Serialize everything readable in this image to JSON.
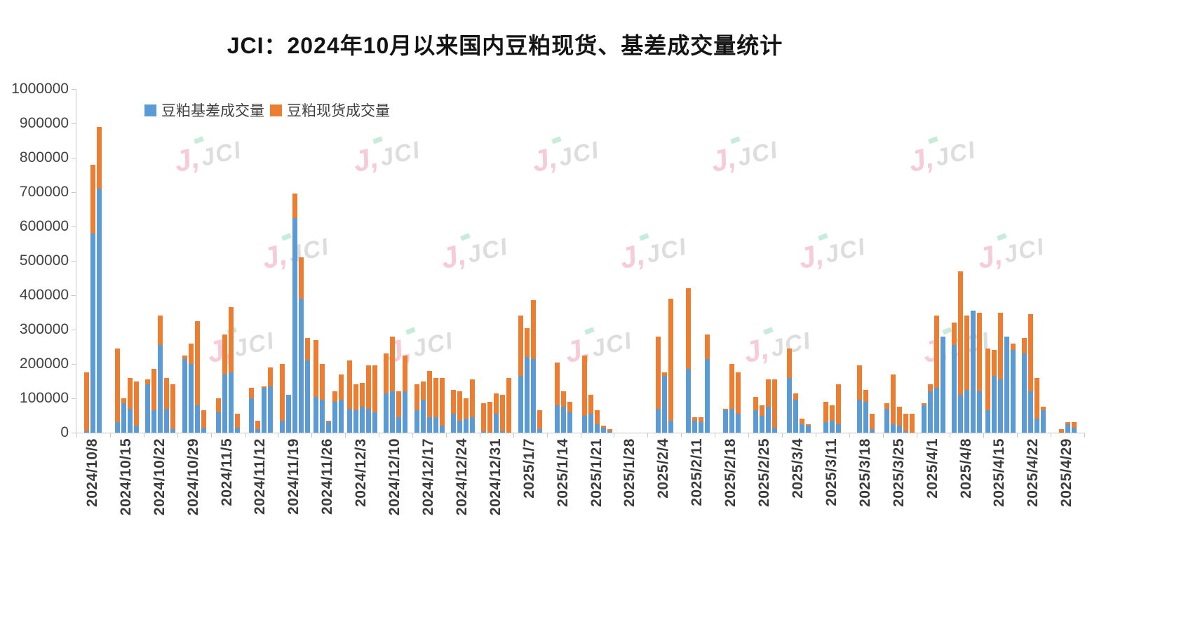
{
  "chart_data": {
    "type": "bar",
    "stacked": true,
    "title": "JCI：2024年10月以来国内豆粕现货、基差成交量统计",
    "xlabel": "",
    "ylabel": "",
    "ylim": [
      0,
      1000000
    ],
    "ytick_step": 100000,
    "yticks": [
      0,
      100000,
      200000,
      300000,
      400000,
      500000,
      600000,
      700000,
      800000,
      900000,
      1000000
    ],
    "grid": false,
    "legend_position": "top-left",
    "series": [
      {
        "name": "豆粕基差成交量",
        "color": "#5B9BD5"
      },
      {
        "name": "豆粕现货成交量",
        "color": "#ED7D31"
      }
    ],
    "bar_value_order": [
      "basis_volume",
      "spot_volume"
    ],
    "weeks": [
      {
        "label": "2024/10/8",
        "bars": [
          [
            5000,
            170000
          ],
          [
            580000,
            200000
          ],
          [
            710000,
            180000
          ]
        ]
      },
      {
        "label": "2024/10/15",
        "bars": [
          [
            30000,
            215000
          ],
          [
            85000,
            15000
          ],
          [
            70000,
            90000
          ],
          [
            20000,
            130000
          ]
        ]
      },
      {
        "label": "2024/10/22",
        "bars": [
          [
            140000,
            15000
          ],
          [
            65000,
            120000
          ],
          [
            255000,
            85000
          ],
          [
            70000,
            90000
          ],
          [
            10000,
            130000
          ]
        ]
      },
      {
        "label": "2024/10/29",
        "bars": [
          [
            215000,
            10000
          ],
          [
            200000,
            60000
          ],
          [
            80000,
            245000
          ],
          [
            15000,
            50000
          ]
        ]
      },
      {
        "label": "2024/11/5",
        "bars": [
          [
            60000,
            40000
          ],
          [
            170000,
            115000
          ],
          [
            175000,
            190000
          ],
          [
            15000,
            40000
          ]
        ]
      },
      {
        "label": "2024/11/12",
        "bars": [
          [
            100000,
            30000
          ],
          [
            10000,
            25000
          ],
          [
            130000,
            5000
          ],
          [
            135000,
            55000
          ]
        ]
      },
      {
        "label": "2024/11/19",
        "bars": [
          [
            35000,
            165000
          ],
          [
            110000,
            0
          ],
          [
            625000,
            70000
          ],
          [
            390000,
            120000
          ],
          [
            210000,
            65000
          ]
        ]
      },
      {
        "label": "2024/11/26",
        "bars": [
          [
            105000,
            165000
          ],
          [
            95000,
            105000
          ],
          [
            30000,
            5000
          ],
          [
            90000,
            30000
          ],
          [
            95000,
            75000
          ]
        ]
      },
      {
        "label": "2024/12/3",
        "bars": [
          [
            70000,
            140000
          ],
          [
            65000,
            75000
          ],
          [
            75000,
            70000
          ],
          [
            70000,
            125000
          ],
          [
            60000,
            135000
          ]
        ]
      },
      {
        "label": "2024/12/10",
        "bars": [
          [
            115000,
            115000
          ],
          [
            120000,
            160000
          ],
          [
            45000,
            75000
          ],
          [
            120000,
            105000
          ]
        ]
      },
      {
        "label": "2024/12/17",
        "bars": [
          [
            65000,
            75000
          ],
          [
            95000,
            55000
          ],
          [
            45000,
            135000
          ],
          [
            45000,
            115000
          ],
          [
            20000,
            140000
          ]
        ]
      },
      {
        "label": "2024/12/24",
        "bars": [
          [
            55000,
            70000
          ],
          [
            35000,
            85000
          ],
          [
            40000,
            60000
          ],
          [
            45000,
            110000
          ]
        ]
      },
      {
        "label": "2024/12/31",
        "bars": [
          [
            5000,
            80000
          ],
          [
            0,
            90000
          ],
          [
            55000,
            60000
          ],
          [
            5000,
            105000
          ],
          [
            0,
            160000
          ]
        ]
      },
      {
        "label": "2025/1/7",
        "bars": [
          [
            165000,
            175000
          ],
          [
            220000,
            85000
          ],
          [
            215000,
            170000
          ],
          [
            10000,
            55000
          ]
        ]
      },
      {
        "label": "2025/1/14",
        "bars": [
          [
            80000,
            125000
          ],
          [
            75000,
            45000
          ],
          [
            60000,
            30000
          ]
        ]
      },
      {
        "label": "2025/1/21",
        "bars": [
          [
            50000,
            175000
          ],
          [
            55000,
            55000
          ],
          [
            25000,
            40000
          ],
          [
            15000,
            5000
          ],
          [
            5000,
            5000
          ]
        ]
      },
      {
        "label": "2025/1/28",
        "bars": []
      },
      {
        "label": "2025/2/4",
        "bars": [
          [
            70000,
            210000
          ],
          [
            165000,
            10000
          ],
          [
            35000,
            355000
          ]
        ]
      },
      {
        "label": "2025/2/11",
        "bars": [
          [
            185000,
            235000
          ],
          [
            35000,
            10000
          ],
          [
            30000,
            15000
          ],
          [
            215000,
            70000
          ]
        ]
      },
      {
        "label": "2025/2/18",
        "bars": [
          [
            65000,
            5000
          ],
          [
            70000,
            130000
          ],
          [
            55000,
            120000
          ]
        ]
      },
      {
        "label": "2025/2/25",
        "bars": [
          [
            65000,
            40000
          ],
          [
            50000,
            30000
          ],
          [
            75000,
            80000
          ],
          [
            15000,
            140000
          ]
        ]
      },
      {
        "label": "2025/3/4",
        "bars": [
          [
            160000,
            85000
          ],
          [
            95000,
            20000
          ],
          [
            25000,
            15000
          ],
          [
            20000,
            5000
          ]
        ]
      },
      {
        "label": "2025/3/11",
        "bars": [
          [
            30000,
            60000
          ],
          [
            35000,
            45000
          ],
          [
            25000,
            115000
          ]
        ]
      },
      {
        "label": "2025/3/18",
        "bars": [
          [
            95000,
            100000
          ],
          [
            90000,
            35000
          ],
          [
            10000,
            45000
          ]
        ]
      },
      {
        "label": "2025/3/25",
        "bars": [
          [
            70000,
            15000
          ],
          [
            25000,
            145000
          ],
          [
            20000,
            55000
          ],
          [
            5000,
            50000
          ],
          [
            0,
            55000
          ]
        ]
      },
      {
        "label": "2025/4/1",
        "bars": [
          [
            80000,
            5000
          ],
          [
            120000,
            20000
          ],
          [
            130000,
            210000
          ],
          [
            280000,
            0
          ]
        ]
      },
      {
        "label": "2025/4/8",
        "bars": [
          [
            255000,
            65000
          ],
          [
            110000,
            360000
          ],
          [
            125000,
            215000
          ],
          [
            355000,
            0
          ],
          [
            120000,
            230000
          ]
        ]
      },
      {
        "label": "2025/4/15",
        "bars": [
          [
            65000,
            180000
          ],
          [
            165000,
            75000
          ],
          [
            155000,
            195000
          ],
          [
            280000,
            0
          ],
          [
            240000,
            20000
          ]
        ]
      },
      {
        "label": "2025/4/22",
        "bars": [
          [
            230000,
            45000
          ],
          [
            120000,
            225000
          ],
          [
            40000,
            120000
          ],
          [
            65000,
            10000
          ]
        ]
      },
      {
        "label": "2025/4/29",
        "bars": [
          [
            0,
            10000
          ],
          [
            25000,
            5000
          ],
          [
            15000,
            15000
          ]
        ]
      }
    ]
  },
  "watermark": {
    "j": "J,",
    "label": "JCI"
  }
}
